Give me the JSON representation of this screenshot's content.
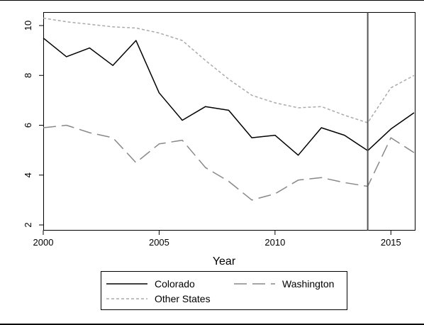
{
  "chart_data": {
    "type": "line",
    "title": "",
    "xlabel": "Year",
    "ylabel": "",
    "xlim": [
      2000,
      2016
    ],
    "ylim": [
      2,
      10
    ],
    "x_ticks": [
      2000,
      2005,
      2010,
      2015
    ],
    "y_ticks": [
      2,
      4,
      6,
      8,
      10
    ],
    "grid": false,
    "legend_position": "bottom",
    "reference_line_x": 2014,
    "x": [
      2000,
      2001,
      2002,
      2003,
      2004,
      2005,
      2006,
      2007,
      2008,
      2009,
      2010,
      2011,
      2012,
      2013,
      2014,
      2015,
      2016
    ],
    "series": [
      {
        "name": "Colorado",
        "color": "#000000",
        "dash": "solid",
        "values": [
          9.5,
          8.75,
          9.1,
          8.4,
          9.4,
          7.3,
          6.2,
          6.75,
          6.6,
          5.5,
          5.6,
          4.8,
          5.9,
          5.6,
          4.98,
          5.85,
          6.5
        ]
      },
      {
        "name": "Washington",
        "color": "#888888",
        "dash": "long-dash",
        "values": [
          5.9,
          6.0,
          5.7,
          5.5,
          4.5,
          5.25,
          5.4,
          4.3,
          3.75,
          3.0,
          3.25,
          3.8,
          3.9,
          3.7,
          3.55,
          5.5,
          4.9
        ]
      },
      {
        "name": "Other States",
        "color": "#aaaaaa",
        "dash": "short-dash",
        "values": [
          10.3,
          10.15,
          10.05,
          9.95,
          9.9,
          9.7,
          9.4,
          8.6,
          7.85,
          7.2,
          6.9,
          6.7,
          6.75,
          6.4,
          6.1,
          7.5,
          8.0
        ]
      }
    ]
  }
}
